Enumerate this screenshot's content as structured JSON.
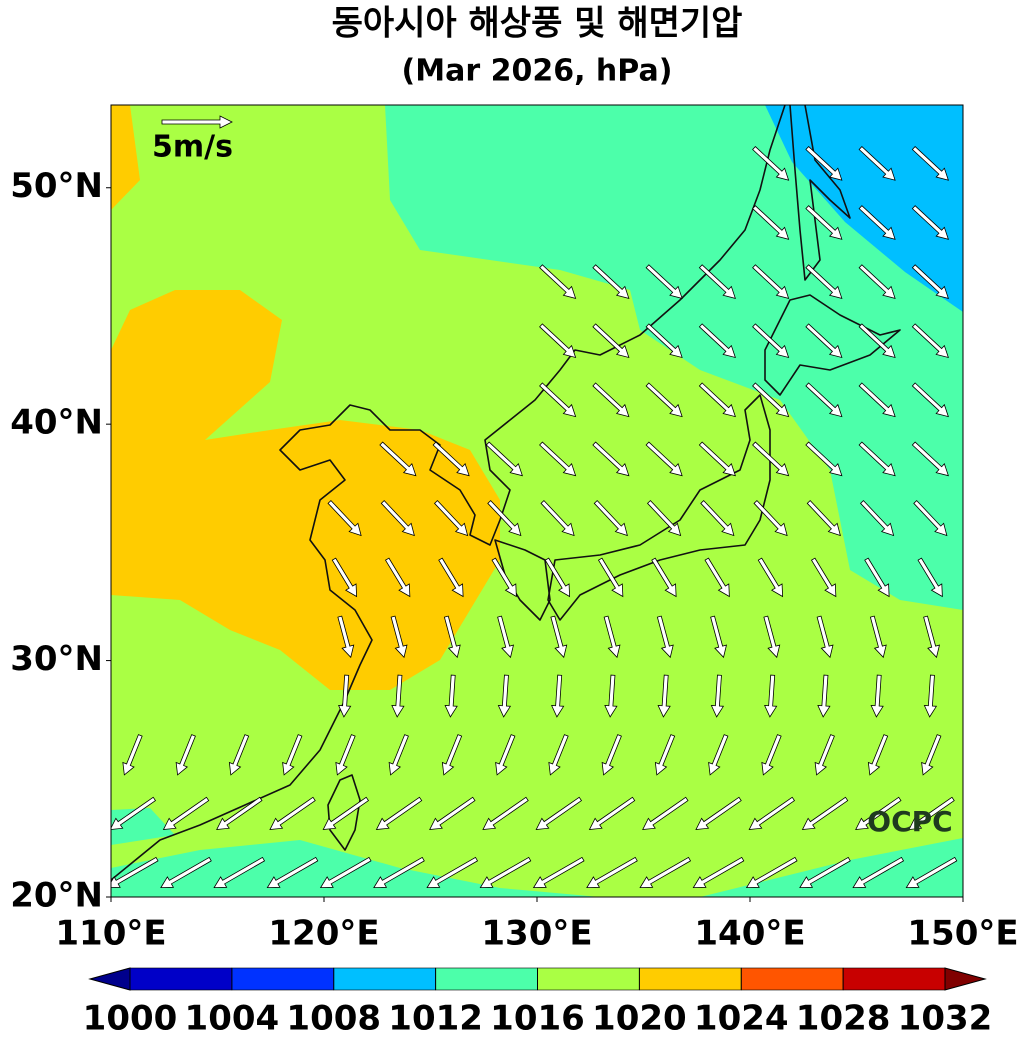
{
  "title": "동아시아 해상풍 및 해면기압",
  "subtitle": "(Mar 2026, hPa)",
  "map": {
    "xlim": [
      110,
      150
    ],
    "ylim": [
      20,
      53.5
    ],
    "xticks": [
      {
        "value": 110,
        "label": "110°E"
      },
      {
        "value": 120,
        "label": "120°E"
      },
      {
        "value": 130,
        "label": "130°E"
      },
      {
        "value": 140,
        "label": "140°E"
      },
      {
        "value": 150,
        "label": "150°E"
      }
    ],
    "yticks": [
      {
        "value": 20,
        "label": "20°N"
      },
      {
        "value": 30,
        "label": "30°N"
      },
      {
        "value": 40,
        "label": "40°N"
      },
      {
        "value": 50,
        "label": "50°N"
      }
    ]
  },
  "colorbar": {
    "levels": [
      1000,
      1004,
      1008,
      1012,
      1016,
      1020,
      1024,
      1028,
      1032
    ],
    "colors": [
      "#0000c8",
      "#0032ff",
      "#00bfff",
      "#4cffaa",
      "#aaff44",
      "#ffcc00",
      "#ff5500",
      "#c80000"
    ],
    "extend_colors": [
      "#00008c",
      "#800000"
    ]
  },
  "reference_vector": "5m/s",
  "credit": "OCPC"
}
